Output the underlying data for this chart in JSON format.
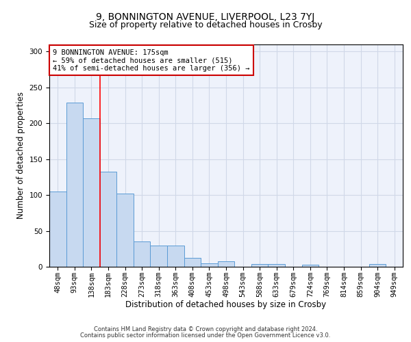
{
  "title_line1": "9, BONNINGTON AVENUE, LIVERPOOL, L23 7YJ",
  "title_line2": "Size of property relative to detached houses in Crosby",
  "xlabel": "Distribution of detached houses by size in Crosby",
  "ylabel": "Number of detached properties",
  "categories": [
    "48sqm",
    "93sqm",
    "138sqm",
    "183sqm",
    "228sqm",
    "273sqm",
    "318sqm",
    "363sqm",
    "408sqm",
    "453sqm",
    "498sqm",
    "543sqm",
    "588sqm",
    "633sqm",
    "679sqm",
    "724sqm",
    "769sqm",
    "814sqm",
    "859sqm",
    "904sqm",
    "949sqm"
  ],
  "values": [
    105,
    229,
    207,
    133,
    102,
    35,
    30,
    30,
    12,
    5,
    8,
    0,
    4,
    4,
    0,
    3,
    0,
    0,
    0,
    4,
    0
  ],
  "bar_color": "#c7d9f0",
  "bar_edge_color": "#5b9bd5",
  "red_line_x": 2.5,
  "annotation_text": "9 BONNINGTON AVENUE: 175sqm\n← 59% of detached houses are smaller (515)\n41% of semi-detached houses are larger (356) →",
  "annotation_box_color": "#ffffff",
  "annotation_box_edge": "#cc0000",
  "ylim": [
    0,
    310
  ],
  "yticks": [
    0,
    50,
    100,
    150,
    200,
    250,
    300
  ],
  "grid_color": "#d0d8e8",
  "background_color": "#eef2fb",
  "footer_line1": "Contains HM Land Registry data © Crown copyright and database right 2024.",
  "footer_line2": "Contains public sector information licensed under the Open Government Licence v3.0.",
  "title_fontsize": 10,
  "subtitle_fontsize": 9,
  "xlabel_fontsize": 8.5,
  "ylabel_fontsize": 8.5,
  "tick_fontsize": 7.5,
  "annotation_fontsize": 7.5,
  "footer_fontsize": 6
}
